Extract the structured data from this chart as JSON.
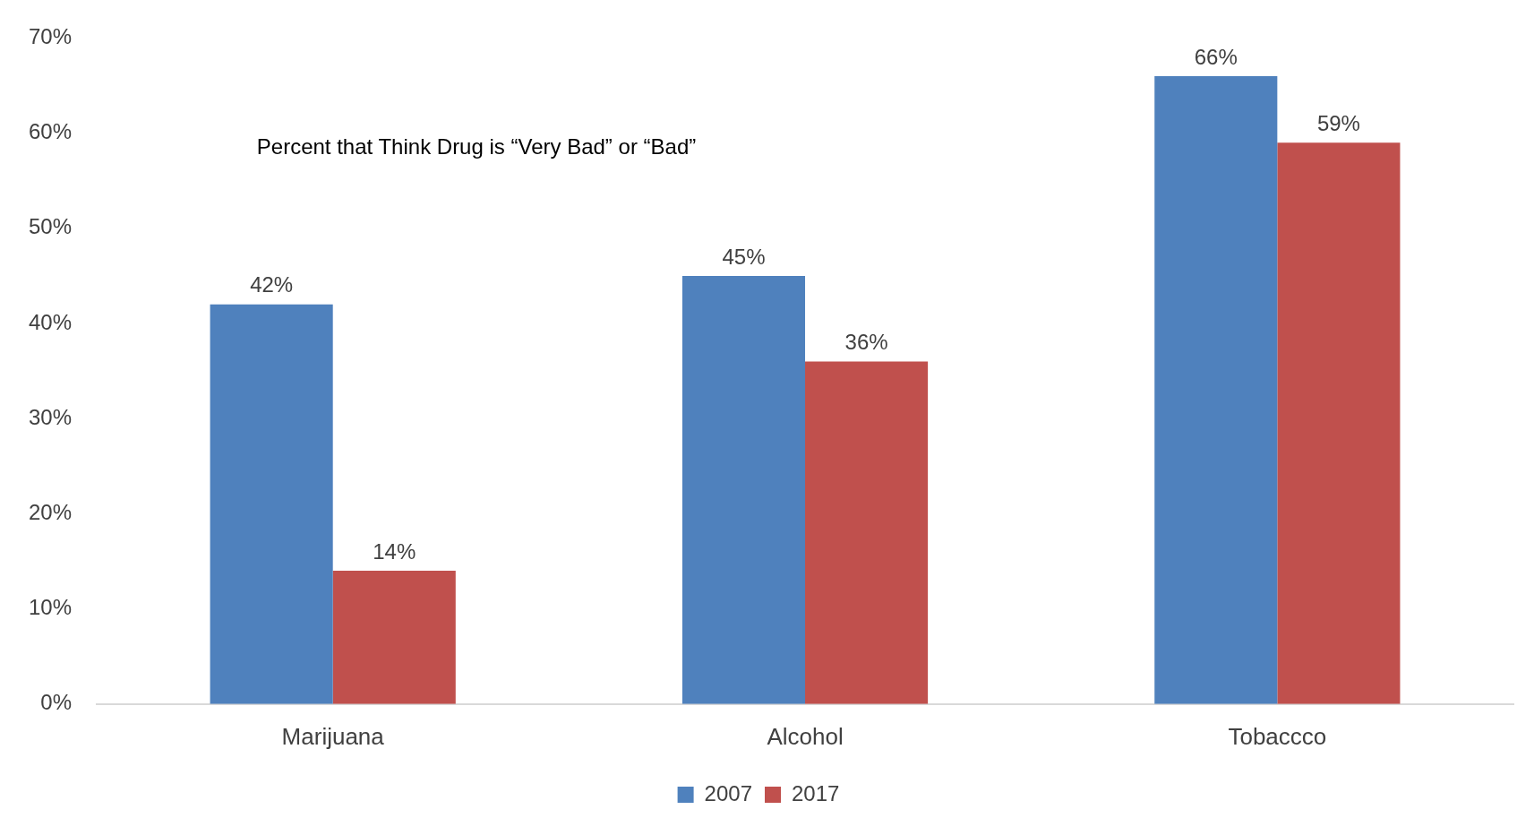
{
  "chart_data": {
    "type": "bar",
    "title": "Percent that Think Drug is “Very Bad” or “Bad”",
    "categories": [
      "Marijuana",
      "Alcohol",
      "Tobaccco"
    ],
    "series": [
      {
        "name": "2007",
        "color": "#4f81bd",
        "values": [
          42,
          45,
          66
        ],
        "value_labels": [
          "42%",
          "45%",
          "66%"
        ]
      },
      {
        "name": "2017",
        "color": "#c0504d",
        "values": [
          14,
          36,
          59
        ],
        "value_labels": [
          "14%",
          "36%",
          "59%"
        ]
      }
    ],
    "ylim": [
      0,
      70
    ],
    "yticks": [
      {
        "value": 0,
        "label": "0%"
      },
      {
        "value": 10,
        "label": "10%"
      },
      {
        "value": 20,
        "label": "20%"
      },
      {
        "value": 30,
        "label": "30%"
      },
      {
        "value": 40,
        "label": "40%"
      },
      {
        "value": 50,
        "label": "50%"
      },
      {
        "value": 60,
        "label": "60%"
      },
      {
        "value": 70,
        "label": "70%"
      }
    ],
    "grid": false,
    "legend": "bottom"
  }
}
